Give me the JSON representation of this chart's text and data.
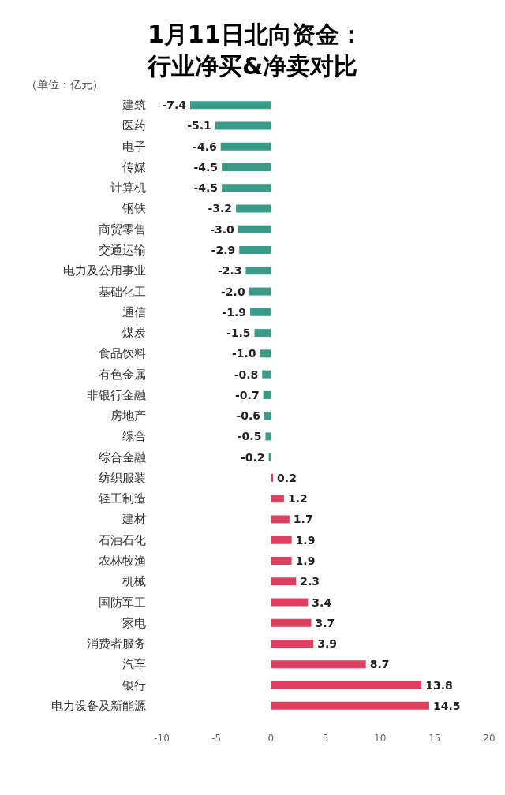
{
  "chart_data": {
    "type": "bar",
    "orientation": "horizontal",
    "title": "1月11日北向资金：行业净买&净卖对比",
    "subtitle": "（单位：亿元）",
    "categories": [
      "建筑",
      "医药",
      "电子",
      "传媒",
      "计算机",
      "钢铁",
      "商贸零售",
      "交通运输",
      "电力及公用事业",
      "基础化工",
      "通信",
      "煤炭",
      "食品饮料",
      "有色金属",
      "非银行金融",
      "房地产",
      "综合",
      "综合金融",
      "纺织服装",
      "轻工制造",
      "建材",
      "石油石化",
      "农林牧渔",
      "机械",
      "国防军工",
      "家电",
      "消费者服务",
      "汽车",
      "银行",
      "电力设备及新能源"
    ],
    "values": [
      -7.4,
      -5.1,
      -4.6,
      -4.5,
      -4.5,
      -3.2,
      -3.0,
      -2.9,
      -2.3,
      -2.0,
      -1.9,
      -1.5,
      -1.0,
      -0.8,
      -0.7,
      -0.6,
      -0.5,
      -0.2,
      0.2,
      1.2,
      1.7,
      1.9,
      1.9,
      2.3,
      3.4,
      3.7,
      3.9,
      8.7,
      13.8,
      14.5
    ],
    "colors": [
      "#3a9b88",
      "#3a9b88",
      "#3a9b88",
      "#3a9b88",
      "#3a9b88",
      "#3a9b88",
      "#3a9b88",
      "#3a9b88",
      "#3a9b88",
      "#3a9b88",
      "#3a9b88",
      "#3a9b88",
      "#3a9b88",
      "#3a9b88",
      "#3a9b88",
      "#3a9b88",
      "#3a9b88",
      "#3a9b88",
      "#e0405f",
      "#e0405f",
      "#e0405f",
      "#e0405f",
      "#e0405f",
      "#e0405f",
      "#e0405f",
      "#e0405f",
      "#e0405f",
      "#e0405f",
      "#e0405f",
      "#e0405f"
    ],
    "xlim": [
      -10,
      20
    ],
    "xticks": [
      -10,
      -5,
      0,
      5,
      10,
      15,
      20
    ],
    "value_labels": [
      "-7.4",
      "-5.1",
      "-4.6",
      "-4.5",
      "-4.5",
      "-3.2",
      "-3.0",
      "-2.9",
      "-2.3",
      "-2.0",
      "-1.9",
      "-1.5",
      "-1.0",
      "-0.8",
      "-0.7",
      "-0.6",
      "-0.5",
      "-0.2",
      "0.2",
      "1.2",
      "1.7",
      "1.9",
      "1.9",
      "2.3",
      "3.4",
      "3.7",
      "3.9",
      "8.7",
      "13.8",
      "14.5"
    ],
    "grid": false
  }
}
